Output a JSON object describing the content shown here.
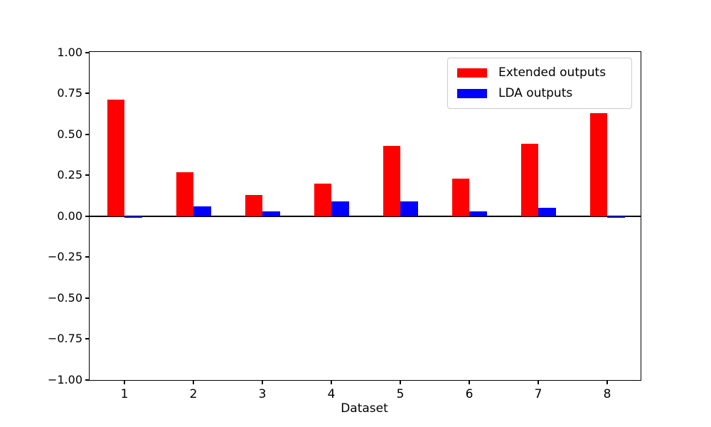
{
  "chart_data": {
    "type": "bar",
    "title": "",
    "xlabel": "Dataset",
    "ylabel": "",
    "categories": [
      "1",
      "2",
      "3",
      "4",
      "5",
      "6",
      "7",
      "8"
    ],
    "series": [
      {
        "name": "Extended outputs",
        "color": "#ff0000",
        "values": [
          0.71,
          0.27,
          0.13,
          0.2,
          0.43,
          0.23,
          0.44,
          0.63
        ]
      },
      {
        "name": "LDA outputs",
        "color": "#0000ff",
        "values": [
          -0.01,
          0.06,
          0.03,
          0.09,
          0.09,
          0.03,
          0.05,
          -0.01
        ]
      }
    ],
    "ylim": [
      -1.0,
      1.0
    ],
    "ytick_values": [
      1.0,
      0.75,
      0.5,
      0.25,
      0.0,
      -0.25,
      -0.5,
      -0.75,
      -1.0
    ],
    "ytick_labels": [
      "1.00",
      "0.75",
      "0.50",
      "0.25",
      "0.00",
      "−0.25",
      "−0.50",
      "−0.75",
      "−1.00"
    ],
    "grid": false,
    "zero_line": true,
    "legend_position": "upper right",
    "background_color": "#ffffff",
    "axis_color": "#000000",
    "legend_border_color": "#cccccc"
  }
}
